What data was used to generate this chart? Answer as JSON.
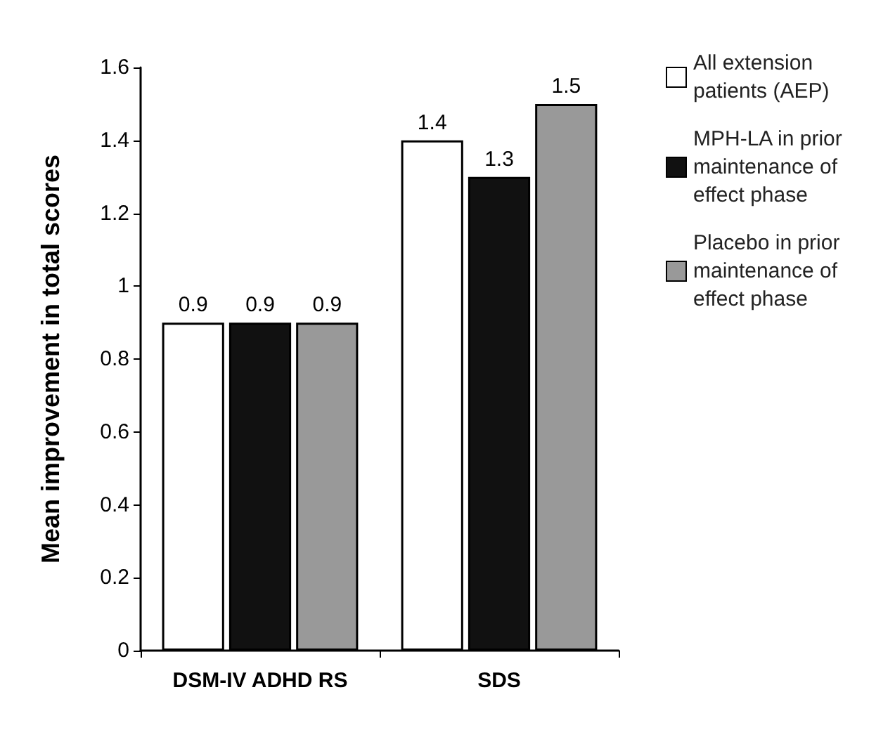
{
  "chart_data": {
    "type": "bar",
    "ylabel": "Mean improvement in total scores",
    "categories": [
      "DSM-IV ADHD RS",
      "SDS"
    ],
    "series": [
      {
        "name": "All extension patients (AEP)",
        "color": "#ffffff",
        "values": [
          0.9,
          1.4
        ]
      },
      {
        "name": "MPH-LA in prior maintenance of effect phase",
        "color": "#111111",
        "values": [
          0.9,
          1.3
        ]
      },
      {
        "name": "Placebo in prior maintenance of effect phase",
        "color": "#999999",
        "values": [
          0.9,
          1.5
        ]
      }
    ],
    "ylim": [
      0,
      1.6
    ],
    "yticks": [
      0,
      0.2,
      0.4,
      0.6,
      0.8,
      1,
      1.2,
      1.4,
      1.6
    ],
    "data_labels": true,
    "legend": "right",
    "grid": false
  }
}
